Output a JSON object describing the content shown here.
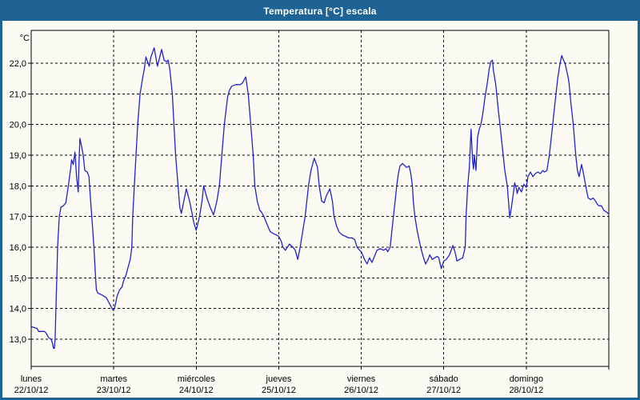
{
  "window": {
    "title": "Temperatura [°C] escala"
  },
  "colors": {
    "frame_blue": "#1f6394",
    "title_text": "#ffffff",
    "background": "#fbfbf4",
    "grid": "#000000",
    "line_blue": "#2222cc"
  },
  "chart_data": {
    "type": "line",
    "title": "Temperatura [°C] escala",
    "unit_label": "°C",
    "xlabel": "",
    "ylabel": "°C",
    "ylim": [
      12.11,
      23.07
    ],
    "xlim_days": [
      0,
      7
    ],
    "grid": "dashed",
    "legend": "none",
    "y_ticks": [
      {
        "value": 22,
        "label": "22,0"
      },
      {
        "value": 21,
        "label": "21,0"
      },
      {
        "value": 20,
        "label": "20,0"
      },
      {
        "value": 19,
        "label": "19,0"
      },
      {
        "value": 18,
        "label": "18,0"
      },
      {
        "value": 17,
        "label": "17,0"
      },
      {
        "value": 16,
        "label": "16,0"
      },
      {
        "value": 15,
        "label": "15,0"
      },
      {
        "value": 14,
        "label": "14,0"
      },
      {
        "value": 13,
        "label": "13,0"
      }
    ],
    "x_days": [
      {
        "name": "lunes",
        "date": "22/10/12"
      },
      {
        "name": "martes",
        "date": "23/10/12"
      },
      {
        "name": "miércoles",
        "date": "24/10/12"
      },
      {
        "name": "jueves",
        "date": "25/10/12"
      },
      {
        "name": "viernes",
        "date": "26/10/12"
      },
      {
        "name": "sábado",
        "date": "27/10/12"
      },
      {
        "name": "domingo",
        "date": "28/10/12"
      }
    ],
    "series": [
      {
        "name": "Temperatura",
        "color": "#2222cc",
        "points": [
          [
            0.01,
            13.4
          ],
          [
            0.07,
            13.35
          ],
          [
            0.09,
            13.25
          ],
          [
            0.16,
            13.25
          ],
          [
            0.18,
            13.2
          ],
          [
            0.21,
            13.05
          ],
          [
            0.24,
            13.0
          ],
          [
            0.26,
            12.85
          ],
          [
            0.27,
            12.7
          ],
          [
            0.28,
            12.7
          ],
          [
            0.29,
            13.0
          ],
          [
            0.3,
            14.0
          ],
          [
            0.31,
            15.0
          ],
          [
            0.32,
            16.0
          ],
          [
            0.34,
            17.0
          ],
          [
            0.36,
            17.3
          ],
          [
            0.39,
            17.35
          ],
          [
            0.42,
            17.45
          ],
          [
            0.45,
            18.0
          ],
          [
            0.48,
            18.6
          ],
          [
            0.49,
            18.85
          ],
          [
            0.51,
            18.7
          ],
          [
            0.53,
            19.1
          ],
          [
            0.55,
            18.3
          ],
          [
            0.57,
            17.8
          ],
          [
            0.58,
            18.8
          ],
          [
            0.59,
            19.55
          ],
          [
            0.61,
            19.3
          ],
          [
            0.63,
            19.0
          ],
          [
            0.65,
            18.5
          ],
          [
            0.68,
            18.45
          ],
          [
            0.7,
            18.3
          ],
          [
            0.72,
            17.5
          ],
          [
            0.74,
            16.8
          ],
          [
            0.76,
            16.0
          ],
          [
            0.78,
            15.0
          ],
          [
            0.79,
            14.6
          ],
          [
            0.81,
            14.5
          ],
          [
            0.85,
            14.45
          ],
          [
            0.88,
            14.4
          ],
          [
            0.91,
            14.35
          ],
          [
            0.94,
            14.2
          ],
          [
            0.96,
            14.1
          ],
          [
            0.99,
            13.95
          ],
          [
            1.01,
            14.0
          ],
          [
            1.04,
            14.4
          ],
          [
            1.07,
            14.6
          ],
          [
            1.1,
            14.7
          ],
          [
            1.12,
            14.9
          ],
          [
            1.15,
            15.1
          ],
          [
            1.18,
            15.4
          ],
          [
            1.2,
            15.6
          ],
          [
            1.22,
            16.0
          ],
          [
            1.23,
            17.0
          ],
          [
            1.25,
            18.0
          ],
          [
            1.27,
            19.0
          ],
          [
            1.29,
            20.0
          ],
          [
            1.32,
            21.0
          ],
          [
            1.35,
            21.5
          ],
          [
            1.37,
            21.8
          ],
          [
            1.39,
            22.2
          ],
          [
            1.43,
            21.9
          ],
          [
            1.45,
            22.2
          ],
          [
            1.49,
            22.5
          ],
          [
            1.53,
            21.9
          ],
          [
            1.58,
            22.45
          ],
          [
            1.61,
            22.1
          ],
          [
            1.64,
            22.05
          ],
          [
            1.66,
            22.1
          ],
          [
            1.68,
            21.8
          ],
          [
            1.71,
            21.0
          ],
          [
            1.73,
            20.0
          ],
          [
            1.75,
            19.0
          ],
          [
            1.78,
            18.0
          ],
          [
            1.8,
            17.3
          ],
          [
            1.82,
            17.1
          ],
          [
            1.85,
            17.5
          ],
          [
            1.88,
            17.9
          ],
          [
            1.92,
            17.5
          ],
          [
            1.95,
            17.1
          ],
          [
            1.97,
            16.8
          ],
          [
            2.0,
            16.55
          ],
          [
            2.04,
            17.0
          ],
          [
            2.07,
            17.5
          ],
          [
            2.09,
            18.0
          ],
          [
            2.13,
            17.6
          ],
          [
            2.17,
            17.3
          ],
          [
            2.21,
            17.05
          ],
          [
            2.25,
            17.5
          ],
          [
            2.28,
            18.0
          ],
          [
            2.31,
            19.0
          ],
          [
            2.34,
            20.0
          ],
          [
            2.38,
            20.9
          ],
          [
            2.4,
            21.1
          ],
          [
            2.43,
            21.25
          ],
          [
            2.48,
            21.3
          ],
          [
            2.53,
            21.3
          ],
          [
            2.56,
            21.35
          ],
          [
            2.6,
            21.55
          ],
          [
            2.63,
            21.0
          ],
          [
            2.66,
            20.0
          ],
          [
            2.69,
            19.0
          ],
          [
            2.71,
            18.0
          ],
          [
            2.74,
            17.5
          ],
          [
            2.77,
            17.2
          ],
          [
            2.79,
            17.15
          ],
          [
            2.82,
            17.0
          ],
          [
            2.85,
            16.8
          ],
          [
            2.88,
            16.6
          ],
          [
            2.9,
            16.5
          ],
          [
            2.93,
            16.45
          ],
          [
            2.97,
            16.4
          ],
          [
            3.0,
            16.35
          ],
          [
            3.03,
            16.2
          ],
          [
            3.05,
            16.0
          ],
          [
            3.08,
            15.9
          ],
          [
            3.13,
            16.1
          ],
          [
            3.17,
            16.0
          ],
          [
            3.2,
            15.9
          ],
          [
            3.23,
            15.6
          ],
          [
            3.26,
            16.0
          ],
          [
            3.29,
            16.5
          ],
          [
            3.32,
            17.0
          ],
          [
            3.34,
            17.5
          ],
          [
            3.36,
            18.0
          ],
          [
            3.39,
            18.5
          ],
          [
            3.43,
            18.9
          ],
          [
            3.47,
            18.6
          ],
          [
            3.49,
            18.0
          ],
          [
            3.52,
            17.5
          ],
          [
            3.55,
            17.45
          ],
          [
            3.58,
            17.7
          ],
          [
            3.62,
            17.9
          ],
          [
            3.65,
            17.5
          ],
          [
            3.67,
            17.0
          ],
          [
            3.7,
            16.7
          ],
          [
            3.73,
            16.5
          ],
          [
            3.77,
            16.4
          ],
          [
            3.81,
            16.35
          ],
          [
            3.85,
            16.3
          ],
          [
            3.89,
            16.3
          ],
          [
            3.92,
            16.25
          ],
          [
            3.95,
            16.0
          ],
          [
            3.98,
            15.9
          ],
          [
            4.0,
            15.85
          ],
          [
            4.04,
            15.6
          ],
          [
            4.07,
            15.45
          ],
          [
            4.1,
            15.65
          ],
          [
            4.13,
            15.5
          ],
          [
            4.16,
            15.7
          ],
          [
            4.19,
            15.9
          ],
          [
            4.23,
            15.95
          ],
          [
            4.27,
            15.9
          ],
          [
            4.3,
            15.95
          ],
          [
            4.32,
            15.85
          ],
          [
            4.35,
            16.0
          ],
          [
            4.37,
            16.5
          ],
          [
            4.39,
            17.0
          ],
          [
            4.41,
            17.5
          ],
          [
            4.43,
            18.0
          ],
          [
            4.45,
            18.4
          ],
          [
            4.47,
            18.65
          ],
          [
            4.5,
            18.73
          ],
          [
            4.53,
            18.65
          ],
          [
            4.55,
            18.6
          ],
          [
            4.58,
            18.65
          ],
          [
            4.6,
            18.4
          ],
          [
            4.62,
            18.0
          ],
          [
            4.63,
            17.5
          ],
          [
            4.65,
            17.0
          ],
          [
            4.68,
            16.5
          ],
          [
            4.72,
            16.0
          ],
          [
            4.75,
            15.7
          ],
          [
            4.78,
            15.45
          ],
          [
            4.81,
            15.6
          ],
          [
            4.83,
            15.75
          ],
          [
            4.86,
            15.6
          ],
          [
            4.89,
            15.65
          ],
          [
            4.92,
            15.7
          ],
          [
            4.94,
            15.65
          ],
          [
            4.97,
            15.3
          ],
          [
            5.0,
            15.55
          ],
          [
            5.03,
            15.6
          ],
          [
            5.07,
            15.75
          ],
          [
            5.11,
            16.05
          ],
          [
            5.14,
            15.8
          ],
          [
            5.16,
            15.55
          ],
          [
            5.19,
            15.6
          ],
          [
            5.23,
            15.65
          ],
          [
            5.26,
            16.0
          ],
          [
            5.27,
            17.0
          ],
          [
            5.29,
            18.0
          ],
          [
            5.31,
            18.6
          ],
          [
            5.33,
            19.85
          ],
          [
            5.35,
            18.8
          ],
          [
            5.36,
            18.55
          ],
          [
            5.37,
            19.0
          ],
          [
            5.39,
            18.5
          ],
          [
            5.41,
            19.6
          ],
          [
            5.43,
            19.85
          ],
          [
            5.45,
            20.0
          ],
          [
            5.47,
            20.3
          ],
          [
            5.5,
            20.9
          ],
          [
            5.53,
            21.4
          ],
          [
            5.55,
            21.8
          ],
          [
            5.57,
            22.05
          ],
          [
            5.59,
            22.1
          ],
          [
            5.6,
            21.8
          ],
          [
            5.63,
            21.3
          ],
          [
            5.66,
            20.5
          ],
          [
            5.68,
            20.0
          ],
          [
            5.72,
            19.0
          ],
          [
            5.74,
            18.5
          ],
          [
            5.77,
            18.0
          ],
          [
            5.79,
            17.3
          ],
          [
            5.8,
            16.95
          ],
          [
            5.82,
            17.3
          ],
          [
            5.84,
            17.7
          ],
          [
            5.86,
            18.1
          ],
          [
            5.88,
            17.9
          ],
          [
            5.89,
            17.75
          ],
          [
            5.91,
            17.95
          ],
          [
            5.94,
            17.8
          ],
          [
            5.97,
            18.05
          ],
          [
            6.0,
            17.95
          ],
          [
            6.02,
            18.3
          ],
          [
            6.05,
            18.45
          ],
          [
            6.08,
            18.3
          ],
          [
            6.11,
            18.4
          ],
          [
            6.14,
            18.45
          ],
          [
            6.17,
            18.4
          ],
          [
            6.2,
            18.5
          ],
          [
            6.22,
            18.45
          ],
          [
            6.25,
            18.5
          ],
          [
            6.28,
            19.0
          ],
          [
            6.3,
            19.5
          ],
          [
            6.32,
            20.0
          ],
          [
            6.34,
            20.5
          ],
          [
            6.36,
            21.0
          ],
          [
            6.38,
            21.5
          ],
          [
            6.41,
            22.0
          ],
          [
            6.43,
            22.25
          ],
          [
            6.45,
            22.1
          ],
          [
            6.47,
            22.0
          ],
          [
            6.49,
            21.75
          ],
          [
            6.51,
            21.5
          ],
          [
            6.52,
            21.3
          ],
          [
            6.54,
            20.7
          ],
          [
            6.57,
            20.0
          ],
          [
            6.6,
            19.0
          ],
          [
            6.62,
            18.5
          ],
          [
            6.64,
            18.3
          ],
          [
            6.67,
            18.7
          ],
          [
            6.7,
            18.3
          ],
          [
            6.72,
            18.0
          ],
          [
            6.75,
            17.6
          ],
          [
            6.78,
            17.55
          ],
          [
            6.81,
            17.6
          ],
          [
            6.84,
            17.5
          ],
          [
            6.86,
            17.4
          ],
          [
            6.88,
            17.35
          ],
          [
            6.91,
            17.35
          ],
          [
            6.94,
            17.2
          ],
          [
            6.97,
            17.15
          ],
          [
            6.99,
            17.1
          ]
        ]
      }
    ]
  }
}
